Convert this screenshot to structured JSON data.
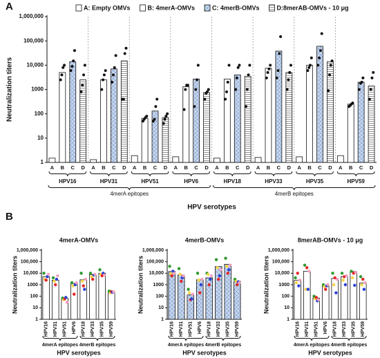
{
  "panel_labels": [
    "A",
    "B"
  ],
  "chart_data": [
    {
      "type": "bar",
      "ylabel": "Neutralization titers",
      "xlabel": "HPV serotypes",
      "log": true,
      "categories": [
        "HPV16",
        "HPV31",
        "HPV51",
        "HPV6",
        "HPV18",
        "HPV33",
        "HPV35",
        "HPV59"
      ],
      "subcategories": [
        "A",
        "B",
        "C",
        "D"
      ],
      "groups": [
        "4merA epitopes",
        "4merB epitopes"
      ],
      "ylim": [
        1,
        1000000
      ],
      "yticks": [
        1,
        10,
        100,
        1000,
        {
          "value": 10000,
          "label": "10,000"
        },
        {
          "value": 100000,
          "label": "100,000"
        },
        {
          "value": 1000000,
          "label": "1,000,000"
        }
      ],
      "series": [
        {
          "name": "A: Empty OMVs",
          "pattern": "solid",
          "color": "#ffffff",
          "values": [
            1.5,
            1.3,
            1.9,
            1.7,
            1.5,
            1.6,
            1.7,
            1.9
          ]
        },
        {
          "name": "B: 4merA-OMVs",
          "pattern": "solid",
          "color": "#ffffff",
          "values": [
            5000,
            2500,
            65,
            1300,
            2700,
            7500,
            10000,
            250
          ],
          "points": [
            [
              2500,
              4000,
              8000,
              10000
            ],
            [
              1000,
              2500,
              4000,
              6000
            ],
            [
              50,
              60,
              70,
              80
            ],
            [
              150,
              1000,
              1500,
              1500
            ],
            [
              400,
              800,
              2000,
              10000
            ],
            [
              3000,
              5000,
              7000,
              10000
            ],
            [
              6000,
              8000,
              10000,
              20000
            ],
            [
              200,
              220,
              250,
              280
            ]
          ]
        },
        {
          "name": "C: 4merB-OMVs",
          "pattern": "crosshatch",
          "color": "#9bb3d6",
          "values": [
            14000,
            7000,
            130,
            2700,
            4000,
            38000,
            60000,
            2000
          ],
          "points": [
            [
              6000,
              9000,
              15000,
              40000
            ],
            [
              2000,
              4000,
              8000,
              25000
            ],
            [
              50,
              60,
              200,
              400
            ],
            [
              200,
              1000,
              2500,
              10000
            ],
            [
              1000,
              3000,
              8000,
              10000
            ],
            [
              3000,
              6000,
              30000,
              150000
            ],
            [
              10000,
              20000,
              40000,
              200000
            ],
            [
              1000,
              1800,
              2000,
              3000
            ]
          ]
        },
        {
          "name": "D:8merAB-OMVs - 10 μg",
          "pattern": "hlines",
          "color": "#777777",
          "values": [
            2500,
            15000,
            70,
            750,
            3500,
            5000,
            14000,
            1400
          ],
          "points": [
            [
              800,
              1500,
              4000,
              10000
            ],
            [
              400,
              400,
              30000,
              50000
            ],
            [
              40,
              60,
              80,
              100
            ],
            [
              400,
              700,
              800,
              1000
            ],
            [
              200,
              1000,
              4000,
              10000
            ],
            [
              1000,
              2500,
              5000,
              10000
            ],
            [
              900,
              4000,
              10000,
              15000
            ],
            [
              400,
              1000,
              3000,
              5000
            ]
          ]
        }
      ]
    },
    {
      "type": "bar",
      "title": "4merA-OMVs",
      "ylabel": "Neutralization titers",
      "xlabel": "HPV serotypes",
      "log": true,
      "categories": [
        "HPV16",
        "HPV31",
        "HPV51",
        "HPV6",
        "HPV18",
        "HPV33",
        "HPV35",
        "HPV59"
      ],
      "groups": [
        "4merA epitopes",
        "4merB epitopes"
      ],
      "ylim": [
        1,
        1000000
      ],
      "yticks": [
        1,
        10,
        100,
        1000,
        {
          "value": 10000,
          "label": "10,000"
        },
        {
          "value": 100000,
          "label": "100,000"
        },
        {
          "value": 1000000,
          "label": "1,000,000"
        }
      ],
      "pattern": "solid",
      "color": "#ffffff",
      "values": [
        5000,
        2500,
        65,
        1300,
        2700,
        7500,
        10000,
        250
      ],
      "point_colors": [
        "#2e9a2e",
        "#f5d547",
        "#e32626",
        "#2a3fd6",
        "#f2a0c0"
      ],
      "points": [
        [
          10000,
          3000,
          2500,
          5000,
          8000
        ],
        [
          4000,
          2000,
          1000,
          3000,
          6000
        ],
        [
          70,
          50,
          60,
          80,
          30
        ],
        [
          1500,
          800,
          150,
          1000,
          1500
        ],
        [
          10000,
          2000,
          800,
          400,
          3000
        ],
        [
          10000,
          5000,
          3000,
          7000,
          8000
        ],
        [
          20000,
          8000,
          6000,
          10000,
          7000
        ],
        [
          280,
          200,
          250,
          220,
          240
        ]
      ]
    },
    {
      "type": "bar",
      "title": "4merB-OMVs",
      "ylabel": "Neutralization titers",
      "xlabel": "HPV serotypes",
      "log": true,
      "categories": [
        "HPV16",
        "HPV31",
        "HPV51",
        "HPV6",
        "HPV18",
        "HPV33",
        "HPV35",
        "HPV59"
      ],
      "groups": [
        "4merA epitopes",
        "4merB epitopes"
      ],
      "ylim": [
        1,
        1000000
      ],
      "yticks": [
        1,
        10,
        100,
        1000,
        {
          "value": 10000,
          "label": "10,000"
        },
        {
          "value": 100000,
          "label": "100,000"
        },
        {
          "value": 1000000,
          "label": "1,000,000"
        }
      ],
      "pattern": "crosshatch",
      "color": "#9bb3d6",
      "values": [
        14000,
        7000,
        130,
        2700,
        4000,
        38000,
        60000,
        2000
      ],
      "point_colors": [
        "#2e9a2e",
        "#f5d547",
        "#e32626",
        "#2a3fd6",
        "#f2a0c0"
      ],
      "points": [
        [
          40000,
          9000,
          6000,
          15000,
          10000
        ],
        [
          25000,
          8000,
          2000,
          4000,
          6000
        ],
        [
          400,
          200,
          50,
          60,
          150
        ],
        [
          10000,
          2500,
          200,
          1000,
          3000
        ],
        [
          10000,
          8000,
          1000,
          3000,
          6000
        ],
        [
          150000,
          30000,
          3000,
          6000,
          20000
        ],
        [
          200000,
          40000,
          10000,
          20000,
          50000
        ],
        [
          3000,
          2000,
          1000,
          1800,
          1500
        ]
      ]
    },
    {
      "type": "bar",
      "title": "8merAB-OMVs - 10 μg",
      "ylabel": "Neutralization titers",
      "xlabel": "HPV serotypes",
      "log": true,
      "categories": [
        "HPV16",
        "HPV31",
        "HPV51",
        "HPV6",
        "HPV18",
        "HPV33",
        "HPV35",
        "HPV59"
      ],
      "groups": [
        "4merA epitopes",
        "4merB epitopes"
      ],
      "ylim": [
        1,
        1000000
      ],
      "yticks": [
        1,
        10,
        100,
        1000,
        {
          "value": 10000,
          "label": "10,000"
        },
        {
          "value": 100000,
          "label": "100,000"
        },
        {
          "value": 1000000,
          "label": "1,000,000"
        }
      ],
      "pattern": "solid",
      "color": "#ffffff",
      "values": [
        2500,
        15000,
        70,
        750,
        3500,
        5000,
        14000,
        1400
      ],
      "point_colors": [
        "#2e9a2e",
        "#f5d547",
        "#e32626",
        "#2a3fd6",
        "#f2a0c0"
      ],
      "points": [
        [
          4000,
          1500,
          10000,
          800,
          2500
        ],
        [
          50000,
          400,
          30000,
          400,
          15000
        ],
        [
          100,
          60,
          80,
          40,
          50
        ],
        [
          1000,
          700,
          400,
          800,
          1000
        ],
        [
          10000,
          1000,
          4000,
          200,
          3000
        ],
        [
          10000,
          2500,
          5000,
          1000,
          6000
        ],
        [
          15000,
          4000,
          10000,
          900,
          12000
        ],
        [
          5000,
          1000,
          3000,
          400,
          1500
        ]
      ]
    }
  ]
}
